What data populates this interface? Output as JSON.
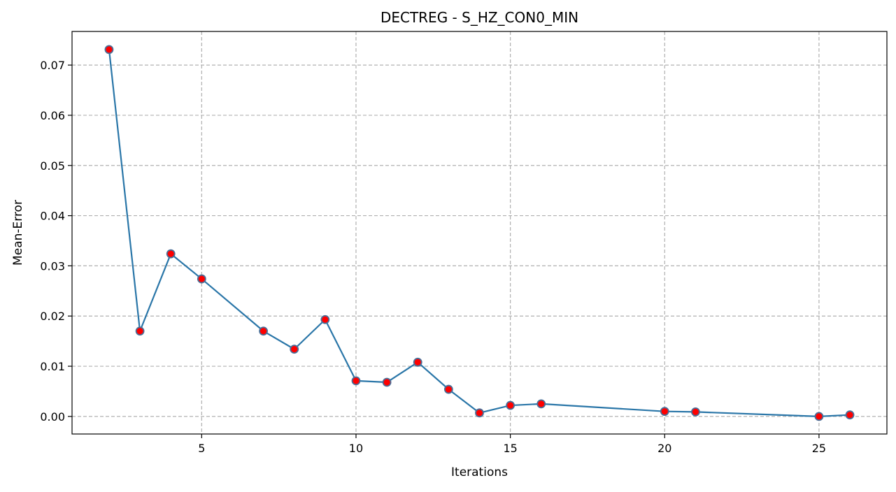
{
  "chart_data": {
    "type": "line",
    "title": "DECTREG - S_HZ_CON0_MIN",
    "xlabel": "Iterations",
    "ylabel": "Mean-Error",
    "xlim": [
      0.8,
      27.2
    ],
    "ylim": [
      -0.0035,
      0.0767
    ],
    "x_ticks": [
      5,
      10,
      15,
      20,
      25
    ],
    "x_tick_labels": [
      "5",
      "10",
      "15",
      "20",
      "25"
    ],
    "y_ticks": [
      0,
      0.01,
      0.02,
      0.03,
      0.04,
      0.05,
      0.06,
      0.07
    ],
    "y_tick_labels": [
      "0.00",
      "0.01",
      "0.02",
      "0.03",
      "0.04",
      "0.05",
      "0.06",
      "0.07"
    ],
    "grid": true,
    "series": [
      {
        "x": [
          2,
          3,
          4,
          5,
          7,
          8,
          9,
          10,
          11,
          12,
          13,
          14,
          15,
          16,
          20,
          21,
          25,
          26
        ],
        "y": [
          0.0731,
          0.017,
          0.0324,
          0.0274,
          0.017,
          0.0134,
          0.0193,
          0.0071,
          0.0068,
          0.0108,
          0.0054,
          0.0007,
          0.0022,
          0.0025,
          0.001,
          0.0009,
          0.0,
          0.0003
        ],
        "line_color": "#2a76a8",
        "marker_color": "#ff0000",
        "marker_edge_color": "#4a6f98"
      }
    ]
  }
}
